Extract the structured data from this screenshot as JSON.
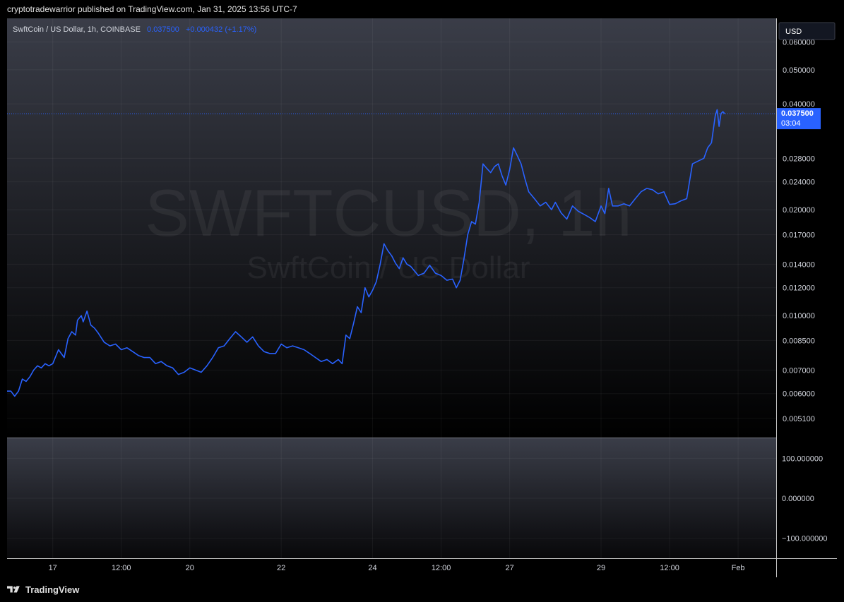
{
  "publisher_line": "cryptotradewarrior published on TradingView.com, Jan 31, 2025 13:56 UTC-7",
  "footer_brand": "TradingView",
  "colors": {
    "line": "#2962ff",
    "label_bg": "#2962ff",
    "grid": "#1e222d",
    "axis_text": "#d1d4dc"
  },
  "legend": {
    "symbol": "SwftCoin / US Dollar, 1h, COINBASE",
    "price": "0.037500",
    "change": "+0.000432 (+1.17%)"
  },
  "watermark": {
    "ticker": "SWFTCUSD, 1h",
    "name": "SwftCoin / US Dollar"
  },
  "currency_button": "USD",
  "last_price_label": {
    "price": "0.037500",
    "countdown": "03:04"
  },
  "chart_data": {
    "type": "line",
    "price_scale": "log",
    "ylim": [
      0.0045,
      0.07
    ],
    "y_ticks": [
      "0.060000",
      "0.050000",
      "0.040000",
      "0.028000",
      "0.024000",
      "0.020000",
      "0.017000",
      "0.014000",
      "0.012000",
      "0.010000",
      "0.008500",
      "0.007000",
      "0.006000",
      "0.005100"
    ],
    "x_ticks": [
      "17",
      "12:00",
      "20",
      "22",
      "24",
      "12:00",
      "27",
      "29",
      "12:00",
      "Feb"
    ],
    "x_tick_dates": [
      "2025-01-17 00:00",
      "2025-01-18 12:00",
      "2025-01-20 00:00",
      "2025-01-22 00:00",
      "2025-01-24 00:00",
      "2025-01-25 12:00",
      "2025-01-27 00:00",
      "2025-01-29 00:00",
      "2025-01-30 12:00",
      "2025-02-01 00:00"
    ],
    "x_range": [
      "2025-01-16 00:00",
      "2025-02-01 20:00"
    ],
    "series": [
      {
        "points": [
          [
            "2025-01-16 00:00",
            0.0061
          ],
          [
            "2025-01-16 02:00",
            0.0061
          ],
          [
            "2025-01-16 04:00",
            0.0059
          ],
          [
            "2025-01-16 06:00",
            0.0061
          ],
          [
            "2025-01-16 08:00",
            0.0066
          ],
          [
            "2025-01-16 10:00",
            0.0065
          ],
          [
            "2025-01-16 12:00",
            0.0067
          ],
          [
            "2025-01-16 14:00",
            0.007
          ],
          [
            "2025-01-16 16:00",
            0.0072
          ],
          [
            "2025-01-16 18:00",
            0.0071
          ],
          [
            "2025-01-16 20:00",
            0.0073
          ],
          [
            "2025-01-16 22:00",
            0.0072
          ],
          [
            "2025-01-17 00:00",
            0.0073
          ],
          [
            "2025-01-17 03:00",
            0.008
          ],
          [
            "2025-01-17 06:00",
            0.0076
          ],
          [
            "2025-01-17 08:00",
            0.0086
          ],
          [
            "2025-01-17 10:00",
            0.009
          ],
          [
            "2025-01-17 12:00",
            0.0088
          ],
          [
            "2025-01-17 13:00",
            0.0097
          ],
          [
            "2025-01-17 15:00",
            0.01
          ],
          [
            "2025-01-17 16:00",
            0.0096
          ],
          [
            "2025-01-17 18:00",
            0.0103
          ],
          [
            "2025-01-17 20:00",
            0.0094
          ],
          [
            "2025-01-17 22:00",
            0.0092
          ],
          [
            "2025-01-18 00:00",
            0.0089
          ],
          [
            "2025-01-18 03:00",
            0.0084
          ],
          [
            "2025-01-18 06:00",
            0.0082
          ],
          [
            "2025-01-18 09:00",
            0.0083
          ],
          [
            "2025-01-18 12:00",
            0.008
          ],
          [
            "2025-01-18 15:00",
            0.0081
          ],
          [
            "2025-01-18 18:00",
            0.0079
          ],
          [
            "2025-01-18 21:00",
            0.0077
          ],
          [
            "2025-01-19 00:00",
            0.0076
          ],
          [
            "2025-01-19 03:00",
            0.0076
          ],
          [
            "2025-01-19 06:00",
            0.0073
          ],
          [
            "2025-01-19 09:00",
            0.0074
          ],
          [
            "2025-01-19 12:00",
            0.0072
          ],
          [
            "2025-01-19 15:00",
            0.0071
          ],
          [
            "2025-01-19 18:00",
            0.0068
          ],
          [
            "2025-01-19 21:00",
            0.0069
          ],
          [
            "2025-01-20 00:00",
            0.0071
          ],
          [
            "2025-01-20 03:00",
            0.007
          ],
          [
            "2025-01-20 06:00",
            0.0069
          ],
          [
            "2025-01-20 09:00",
            0.0072
          ],
          [
            "2025-01-20 12:00",
            0.0076
          ],
          [
            "2025-01-20 15:00",
            0.0081
          ],
          [
            "2025-01-20 18:00",
            0.0082
          ],
          [
            "2025-01-20 21:00",
            0.0086
          ],
          [
            "2025-01-21 00:00",
            0.009
          ],
          [
            "2025-01-21 03:00",
            0.0087
          ],
          [
            "2025-01-21 06:00",
            0.0084
          ],
          [
            "2025-01-21 09:00",
            0.0087
          ],
          [
            "2025-01-21 12:00",
            0.0082
          ],
          [
            "2025-01-21 15:00",
            0.0079
          ],
          [
            "2025-01-21 18:00",
            0.0078
          ],
          [
            "2025-01-21 21:00",
            0.0078
          ],
          [
            "2025-01-22 00:00",
            0.0083
          ],
          [
            "2025-01-22 03:00",
            0.0081
          ],
          [
            "2025-01-22 06:00",
            0.0082
          ],
          [
            "2025-01-22 09:00",
            0.0081
          ],
          [
            "2025-01-22 12:00",
            0.008
          ],
          [
            "2025-01-22 15:00",
            0.0078
          ],
          [
            "2025-01-22 18:00",
            0.0076
          ],
          [
            "2025-01-22 21:00",
            0.0074
          ],
          [
            "2025-01-23 00:00",
            0.0075
          ],
          [
            "2025-01-23 03:00",
            0.0073
          ],
          [
            "2025-01-23 06:00",
            0.0075
          ],
          [
            "2025-01-23 08:00",
            0.0073
          ],
          [
            "2025-01-23 10:00",
            0.0088
          ],
          [
            "2025-01-23 12:00",
            0.0086
          ],
          [
            "2025-01-23 14:00",
            0.0095
          ],
          [
            "2025-01-23 16:00",
            0.0106
          ],
          [
            "2025-01-23 18:00",
            0.0102
          ],
          [
            "2025-01-23 20:00",
            0.012
          ],
          [
            "2025-01-23 22:00",
            0.0113
          ],
          [
            "2025-01-24 00:00",
            0.0118
          ],
          [
            "2025-01-24 02:00",
            0.0125
          ],
          [
            "2025-01-24 04:00",
            0.014
          ],
          [
            "2025-01-24 06:00",
            0.016
          ],
          [
            "2025-01-24 08:00",
            0.0153
          ],
          [
            "2025-01-24 10:00",
            0.0148
          ],
          [
            "2025-01-24 12:00",
            0.0141
          ],
          [
            "2025-01-24 14:00",
            0.0136
          ],
          [
            "2025-01-24 16:00",
            0.0146
          ],
          [
            "2025-01-24 18:00",
            0.014
          ],
          [
            "2025-01-24 20:00",
            0.0138
          ],
          [
            "2025-01-24 22:00",
            0.0134
          ],
          [
            "2025-01-25 00:00",
            0.013
          ],
          [
            "2025-01-25 03:00",
            0.0132
          ],
          [
            "2025-01-25 06:00",
            0.0139
          ],
          [
            "2025-01-25 09:00",
            0.0132
          ],
          [
            "2025-01-25 12:00",
            0.013
          ],
          [
            "2025-01-25 15:00",
            0.0126
          ],
          [
            "2025-01-25 18:00",
            0.0127
          ],
          [
            "2025-01-25 20:00",
            0.012
          ],
          [
            "2025-01-25 22:00",
            0.0126
          ],
          [
            "2025-01-26 00:00",
            0.0145
          ],
          [
            "2025-01-26 02:00",
            0.017
          ],
          [
            "2025-01-26 04:00",
            0.0185
          ],
          [
            "2025-01-26 06:00",
            0.0182
          ],
          [
            "2025-01-26 08:00",
            0.021
          ],
          [
            "2025-01-26 10:00",
            0.027
          ],
          [
            "2025-01-26 12:00",
            0.0262
          ],
          [
            "2025-01-26 14:00",
            0.0255
          ],
          [
            "2025-01-26 16:00",
            0.0265
          ],
          [
            "2025-01-26 18:00",
            0.027
          ],
          [
            "2025-01-26 20:00",
            0.025
          ],
          [
            "2025-01-26 22:00",
            0.0235
          ],
          [
            "2025-01-27 00:00",
            0.026
          ],
          [
            "2025-01-27 02:00",
            0.03
          ],
          [
            "2025-01-27 04:00",
            0.0285
          ],
          [
            "2025-01-27 06:00",
            0.027
          ],
          [
            "2025-01-27 08:00",
            0.0245
          ],
          [
            "2025-01-27 10:00",
            0.0225
          ],
          [
            "2025-01-27 13:00",
            0.0215
          ],
          [
            "2025-01-27 16:00",
            0.0205
          ],
          [
            "2025-01-27 19:00",
            0.021
          ],
          [
            "2025-01-27 22:00",
            0.02
          ],
          [
            "2025-01-28 00:00",
            0.021
          ],
          [
            "2025-01-28 03:00",
            0.0196
          ],
          [
            "2025-01-28 06:00",
            0.0188
          ],
          [
            "2025-01-28 09:00",
            0.0205
          ],
          [
            "2025-01-28 12:00",
            0.0198
          ],
          [
            "2025-01-28 15:00",
            0.0194
          ],
          [
            "2025-01-28 18:00",
            0.019
          ],
          [
            "2025-01-28 21:00",
            0.0185
          ],
          [
            "2025-01-29 00:00",
            0.0205
          ],
          [
            "2025-01-29 02:00",
            0.0195
          ],
          [
            "2025-01-29 04:00",
            0.023
          ],
          [
            "2025-01-29 06:00",
            0.0205
          ],
          [
            "2025-01-29 09:00",
            0.0205
          ],
          [
            "2025-01-29 12:00",
            0.0208
          ],
          [
            "2025-01-29 15:00",
            0.0205
          ],
          [
            "2025-01-29 18:00",
            0.0215
          ],
          [
            "2025-01-29 21:00",
            0.0225
          ],
          [
            "2025-01-30 00:00",
            0.023
          ],
          [
            "2025-01-30 03:00",
            0.0228
          ],
          [
            "2025-01-30 06:00",
            0.0222
          ],
          [
            "2025-01-30 09:00",
            0.0225
          ],
          [
            "2025-01-30 12:00",
            0.0207
          ],
          [
            "2025-01-30 15:00",
            0.0208
          ],
          [
            "2025-01-30 18:00",
            0.0212
          ],
          [
            "2025-01-30 21:00",
            0.0215
          ],
          [
            "2025-01-31 00:00",
            0.027
          ],
          [
            "2025-01-31 03:00",
            0.0275
          ],
          [
            "2025-01-31 06:00",
            0.028
          ],
          [
            "2025-01-31 08:00",
            0.03
          ],
          [
            "2025-01-31 10:00",
            0.031
          ],
          [
            "2025-01-31 12:00",
            0.037
          ],
          [
            "2025-01-31 13:00",
            0.0385
          ],
          [
            "2025-01-31 14:00",
            0.0345
          ],
          [
            "2025-01-31 15:00",
            0.0375
          ],
          [
            "2025-01-31 16:00",
            0.038
          ],
          [
            "2025-01-31 17:00",
            0.0375
          ]
        ]
      }
    ],
    "lower_pane_ticks": [
      "100.000000",
      "0.000000",
      "−100.000000"
    ],
    "lower_pane_range": [
      -150,
      150
    ]
  }
}
